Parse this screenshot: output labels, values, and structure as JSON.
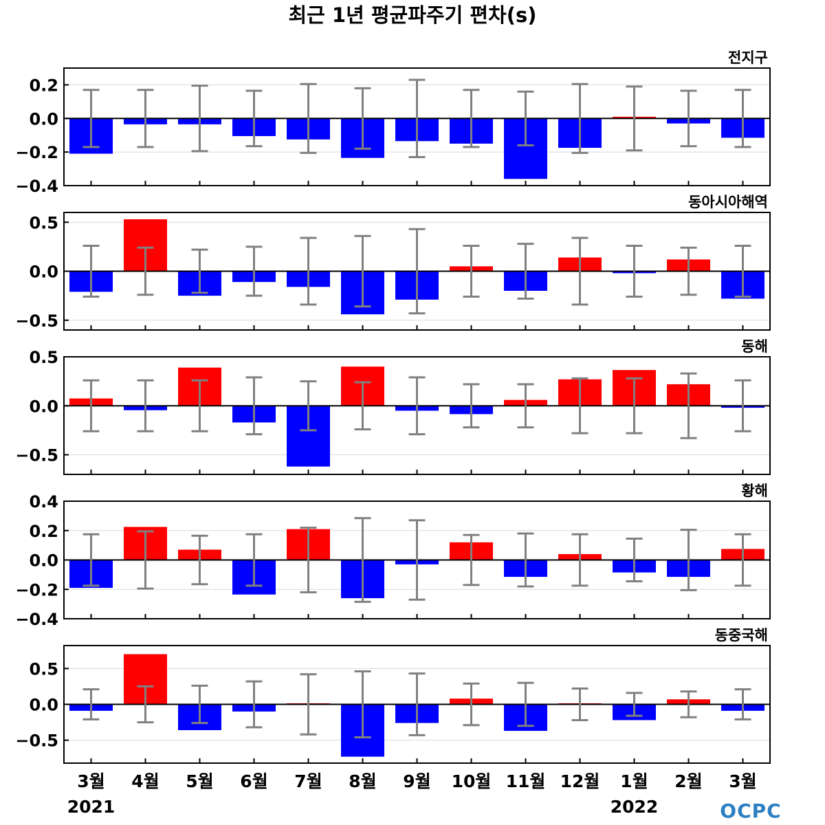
{
  "title": "최근 1년 평균파주기 편차(s)",
  "logo": "OCPC",
  "years": [
    {
      "label": "2021",
      "category_index": 0
    },
    {
      "label": "2022",
      "category_index": 10
    }
  ],
  "colors": {
    "positive": "#ff0000",
    "negative": "#0000ff",
    "error_bar": "#808080",
    "zero_line": "#000000",
    "grid": "#d9d9d9"
  },
  "chart_data": [
    {
      "type": "bar",
      "title": "전지구",
      "categories": [
        "3월",
        "4월",
        "5월",
        "6월",
        "7월",
        "8월",
        "9월",
        "10월",
        "11월",
        "12월",
        "1월",
        "2월",
        "3월"
      ],
      "values": [
        -0.21,
        -0.035,
        -0.035,
        -0.105,
        -0.125,
        -0.235,
        -0.135,
        -0.15,
        -0.36,
        -0.175,
        0.01,
        -0.03,
        -0.115
      ],
      "error": [
        0.17,
        0.17,
        0.195,
        0.165,
        0.205,
        0.18,
        0.23,
        0.17,
        0.16,
        0.205,
        0.19,
        0.165,
        0.17
      ],
      "ylim": [
        -0.4,
        0.3
      ],
      "yticks": [
        0.2,
        0.0,
        -0.2,
        -0.4
      ],
      "ytick_labels": [
        "0.2",
        "0.0",
        "−0.2",
        "−0.4"
      ],
      "grid": true
    },
    {
      "type": "bar",
      "title": "동아시아해역",
      "categories": [
        "3월",
        "4월",
        "5월",
        "6월",
        "7월",
        "8월",
        "9월",
        "10월",
        "11월",
        "12월",
        "1월",
        "2월",
        "3월"
      ],
      "values": [
        -0.21,
        0.53,
        -0.25,
        -0.11,
        -0.16,
        -0.44,
        -0.29,
        0.05,
        -0.2,
        0.14,
        -0.02,
        0.12,
        -0.28
      ],
      "error": [
        0.26,
        0.24,
        0.22,
        0.25,
        0.34,
        0.36,
        0.43,
        0.26,
        0.28,
        0.34,
        0.26,
        0.24,
        0.26
      ],
      "ylim": [
        -0.6,
        0.6
      ],
      "yticks": [
        0.5,
        0.0,
        -0.5
      ],
      "ytick_labels": [
        "0.5",
        "0.0",
        "−0.5"
      ],
      "grid": true
    },
    {
      "type": "bar",
      "title": "동해",
      "categories": [
        "3월",
        "4월",
        "5월",
        "6월",
        "7월",
        "8월",
        "9월",
        "10월",
        "11월",
        "12월",
        "1월",
        "2월",
        "3월"
      ],
      "values": [
        0.075,
        -0.045,
        0.39,
        -0.17,
        -0.62,
        0.4,
        -0.05,
        -0.085,
        0.06,
        0.27,
        0.365,
        0.22,
        -0.02
      ],
      "error": [
        0.26,
        0.26,
        0.26,
        0.29,
        0.25,
        0.24,
        0.29,
        0.22,
        0.22,
        0.28,
        0.28,
        0.33,
        0.26
      ],
      "ylim": [
        -0.7,
        0.5
      ],
      "yticks": [
        0.5,
        0.0,
        -0.5
      ],
      "ytick_labels": [
        "0.5",
        "0.0",
        "−0.5"
      ],
      "grid": true
    },
    {
      "type": "bar",
      "title": "황해",
      "categories": [
        "3월",
        "4월",
        "5월",
        "6월",
        "7월",
        "8월",
        "9월",
        "10월",
        "11월",
        "12월",
        "1월",
        "2월",
        "3월"
      ],
      "values": [
        -0.19,
        0.225,
        0.07,
        -0.235,
        0.21,
        -0.26,
        -0.03,
        0.12,
        -0.115,
        0.04,
        -0.085,
        -0.115,
        0.075
      ],
      "error": [
        0.175,
        0.195,
        0.165,
        0.175,
        0.22,
        0.285,
        0.27,
        0.17,
        0.18,
        0.175,
        0.145,
        0.205,
        0.175
      ],
      "ylim": [
        -0.4,
        0.4
      ],
      "yticks": [
        0.4,
        0.2,
        0.0,
        -0.2,
        -0.4
      ],
      "ytick_labels": [
        "0.4",
        "0.2",
        "0.0",
        "−0.2",
        "−0.4"
      ],
      "grid": true
    },
    {
      "type": "bar",
      "title": "동중국해",
      "categories": [
        "3월",
        "4월",
        "5월",
        "6월",
        "7월",
        "8월",
        "9월",
        "10월",
        "11월",
        "12월",
        "1월",
        "2월",
        "3월"
      ],
      "values": [
        -0.09,
        0.7,
        -0.36,
        -0.1,
        0.0,
        -0.73,
        -0.26,
        0.08,
        -0.37,
        0.0,
        -0.22,
        0.07,
        -0.09
      ],
      "error": [
        0.21,
        0.25,
        0.26,
        0.32,
        0.42,
        0.46,
        0.43,
        0.29,
        0.3,
        0.22,
        0.16,
        0.18,
        0.21
      ],
      "ylim": [
        -0.82,
        0.82
      ],
      "yticks": [
        0.5,
        0.0,
        -0.5
      ],
      "ytick_labels": [
        "0.5",
        "0.0",
        "−0.5"
      ],
      "grid": true
    }
  ]
}
